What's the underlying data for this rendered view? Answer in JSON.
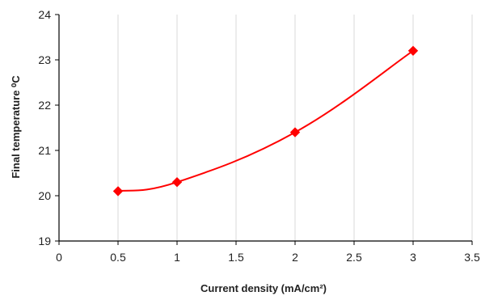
{
  "chart_data": {
    "type": "scatter",
    "title": "",
    "xlabel": "Current density (mA/cm²)",
    "ylabel": "Final temperature ⁰C",
    "xlim": [
      0,
      3.5
    ],
    "ylim": [
      19,
      24
    ],
    "x_ticks": [
      "0",
      "0.5",
      "1",
      "1.5",
      "2",
      "2.5",
      "3",
      "3.5"
    ],
    "y_ticks": [
      "19",
      "20",
      "21",
      "22",
      "23",
      "24"
    ],
    "grid": "vertical",
    "series": [
      {
        "x": [
          0.5,
          1,
          2,
          3
        ],
        "y": [
          20.1,
          20.3,
          21.4,
          23.2
        ],
        "line": "smooth",
        "marker": "diamond",
        "color": "#ff0000"
      }
    ]
  }
}
